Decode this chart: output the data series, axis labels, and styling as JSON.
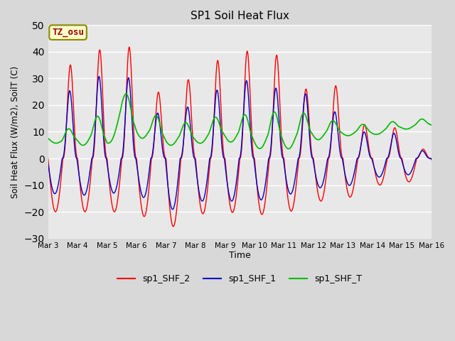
{
  "title": "SP1 Soil Heat Flux",
  "xlabel": "Time",
  "ylabel": "Soil Heat Flux (W/m2), SoilT (C)",
  "ylim": [
    -30,
    50
  ],
  "yticks": [
    -30,
    -20,
    -10,
    0,
    10,
    20,
    30,
    40,
    50
  ],
  "color_shf2": "#ff0000",
  "color_shf1": "#0000cc",
  "color_shft": "#00bb00",
  "bg_color": "#e8e8e8",
  "fig_bg_color": "#d8d8d8",
  "annotation_text": "TZ_osu",
  "annotation_bg": "#ffffcc",
  "annotation_border": "#888800",
  "legend_labels": [
    "sp1_SHF_2",
    "sp1_SHF_1",
    "sp1_SHF_T"
  ],
  "x_tick_labels": [
    "Mar 3",
    "Mar 4",
    "Mar 5",
    "Mar 6",
    "Mar 7",
    "Mar 8",
    "Mar 9",
    "Mar 10",
    "Mar 11",
    "Mar 12",
    "Mar 13",
    "Mar 14",
    "Mar 15",
    "Mar 16"
  ],
  "num_points": 2600
}
